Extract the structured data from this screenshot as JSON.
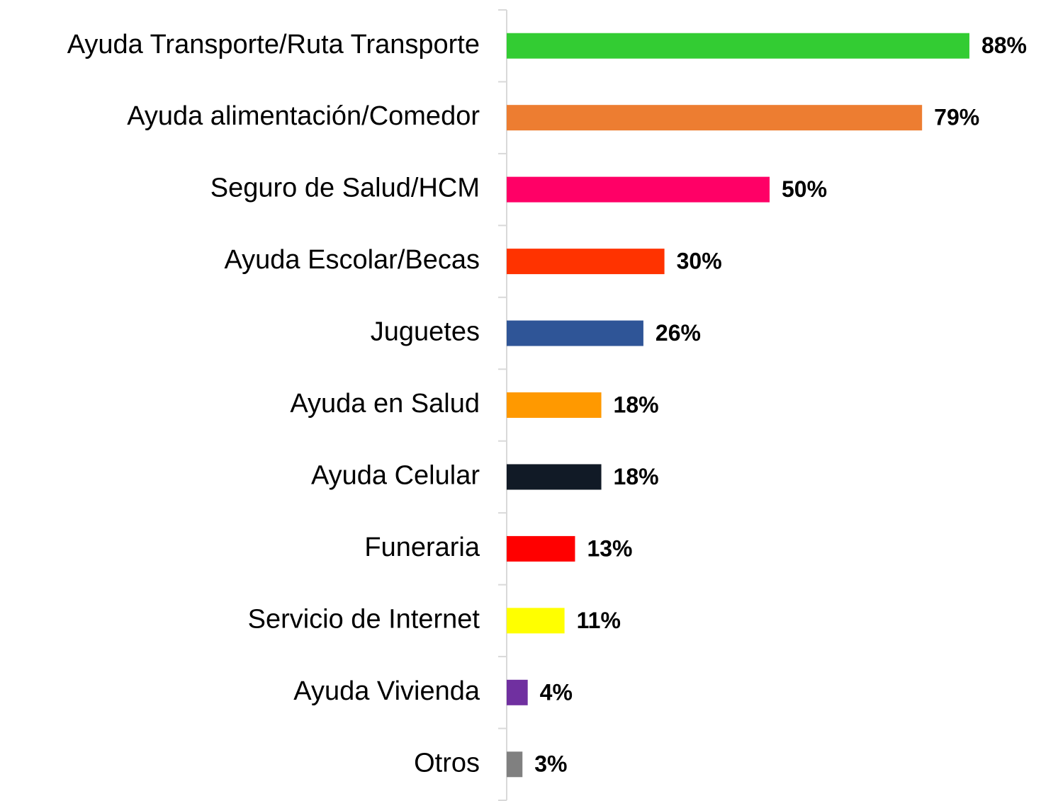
{
  "chart_data": {
    "type": "hbar",
    "categories": [
      "Ayuda Transporte/Ruta Transporte",
      "Ayuda alimentación/Comedor",
      "Seguro de Salud/HCM",
      "Ayuda Escolar/Becas",
      "Juguetes",
      "Ayuda en Salud",
      "Ayuda Celular",
      "Funeraria",
      "Servicio de Internet",
      "Ayuda Vivienda",
      "Otros"
    ],
    "values": [
      88,
      79,
      50,
      30,
      26,
      18,
      18,
      13,
      11,
      4,
      3
    ],
    "value_labels": [
      "88%",
      "79%",
      "50%",
      "30%",
      "26%",
      "18%",
      "18%",
      "13%",
      "11%",
      "4%",
      "3%"
    ],
    "colors": [
      "#33cc33",
      "#ed7d31",
      "#ff0066",
      "#ff3300",
      "#2f5597",
      "#ff9900",
      "#111a26",
      "#ff0000",
      "#ffff00",
      "#7030a0",
      "#808080"
    ],
    "xlim": [
      0,
      100
    ]
  }
}
